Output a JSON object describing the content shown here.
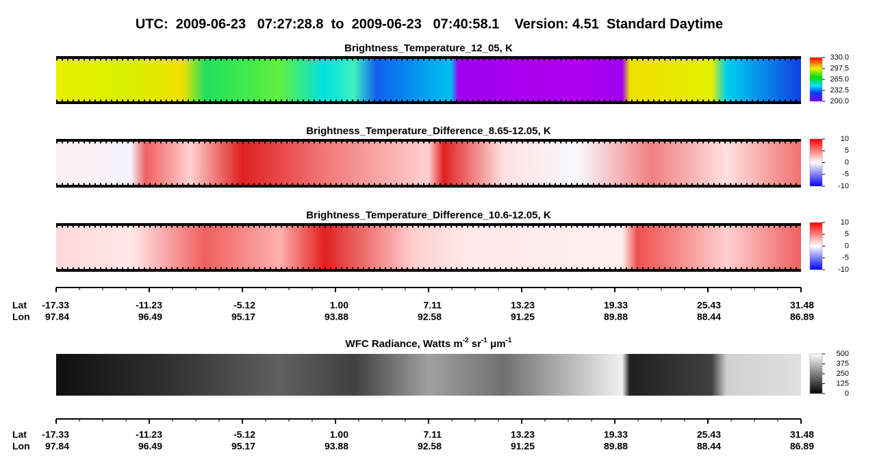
{
  "title": "UTC:  2009-06-23   07:27:28.8  to  2009-06-23   07:40:58.1    Version: 4.51  Standard Daytime",
  "panels": [
    {
      "title": "Brightness_Temperature_12_05, K",
      "clim": [
        200,
        330
      ],
      "cticks": [
        {
          "value": 330,
          "label": "330.0"
        },
        297.5,
        {
          "value": 265,
          "label": "265.0"
        },
        232.5,
        {
          "value": 200,
          "label": "200.0"
        }
      ]
    },
    {
      "title": "Brightness_Temperature_Difference_8.65-12.05, K",
      "clim": [
        -10,
        10
      ],
      "cticks": [
        10,
        5,
        0,
        -5,
        -10
      ]
    },
    {
      "title": "Brightness_Temperature_Difference_10.6-12.05, K",
      "clim": [
        -10,
        10
      ],
      "cticks": [
        10,
        5,
        0,
        -5,
        -10
      ]
    },
    {
      "title": [
        "WFC Radiance, Watts m",
        "-2",
        " sr",
        "-1",
        " μm",
        "-1"
      ],
      "clim": [
        0,
        500
      ],
      "cticks": [
        500,
        375,
        250,
        125,
        0
      ]
    }
  ],
  "axis": {
    "lat_label": "Lat",
    "lon_label": "Lon",
    "lat": [
      -17.33,
      -11.23,
      -5.12,
      {
        "value": 1,
        "label": "1.00"
      },
      7.11,
      13.23,
      19.33,
      25.43,
      31.48
    ],
    "lon": [
      97.84,
      96.49,
      95.17,
      93.88,
      92.58,
      91.25,
      89.88,
      88.44,
      86.89
    ]
  }
}
